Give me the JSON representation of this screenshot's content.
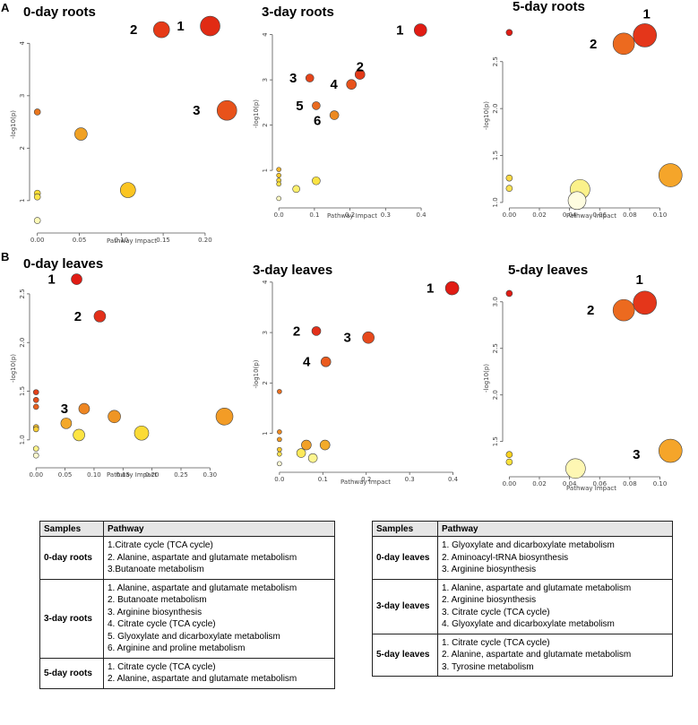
{
  "panel_labels": [
    "A",
    "B"
  ],
  "chart_data": [
    {
      "type": "scatter",
      "title": "0-day roots",
      "xlabel": "Pathway Impact",
      "ylabel": "-log10(p)",
      "xlim": [
        -0.005,
        0.23
      ],
      "ylim": [
        0.45,
        4.45
      ],
      "xticks": [
        0.0,
        0.05,
        0.1,
        0.15,
        0.2
      ],
      "xtick_labels": [
        "0.00",
        "0.05",
        "0.10",
        "0.15",
        "0.20"
      ],
      "yticks": [
        1,
        2,
        3,
        4
      ],
      "ytick_labels": [
        "1",
        "2",
        "3",
        "4"
      ],
      "points": [
        {
          "x": 0.206,
          "y": 4.33,
          "r": 11,
          "color": "#e12b14",
          "label": "1"
        },
        {
          "x": 0.148,
          "y": 4.26,
          "r": 9,
          "color": "#e63a17",
          "label": "2"
        },
        {
          "x": 0.226,
          "y": 2.72,
          "r": 11,
          "color": "#e8521b",
          "label": "3"
        },
        {
          "x": 0.0,
          "y": 2.69,
          "r": 3.5,
          "color": "#e8761e",
          "label": ""
        },
        {
          "x": 0.052,
          "y": 2.27,
          "r": 7,
          "color": "#f0a124",
          "label": ""
        },
        {
          "x": 0.108,
          "y": 1.2,
          "r": 8.5,
          "color": "#fbc522",
          "label": ""
        },
        {
          "x": 0.0,
          "y": 1.14,
          "r": 3.5,
          "color": "#fbdc33",
          "label": ""
        },
        {
          "x": 0.0,
          "y": 1.07,
          "r": 3.5,
          "color": "#fde54a",
          "label": ""
        },
        {
          "x": 0.0,
          "y": 0.62,
          "r": 3.5,
          "color": "#fefbb8",
          "label": ""
        }
      ]
    },
    {
      "type": "scatter",
      "title": "3-day roots",
      "xlabel": "Pathway Impact",
      "ylabel": "-log10(p)",
      "xlim": [
        -0.008,
        0.42
      ],
      "ylim": [
        0.25,
        4.25
      ],
      "xticks": [
        0.0,
        0.1,
        0.2,
        0.3,
        0.4
      ],
      "xtick_labels": [
        "0.0",
        "0.1",
        "0.2",
        "0.3",
        "0.4"
      ],
      "yticks": [
        1,
        2,
        3,
        4
      ],
      "ytick_labels": [
        "1",
        "2",
        "3",
        "4"
      ],
      "points": [
        {
          "x": 0.398,
          "y": 4.1,
          "r": 7,
          "color": "#e11c14",
          "label": "1"
        },
        {
          "x": 0.228,
          "y": 3.12,
          "r": 5.5,
          "color": "#e43a18",
          "label": "2"
        },
        {
          "x": 0.087,
          "y": 3.04,
          "r": 4.5,
          "color": "#e5441a",
          "label": "3"
        },
        {
          "x": 0.204,
          "y": 2.9,
          "r": 5.5,
          "color": "#e8521b",
          "label": "4"
        },
        {
          "x": 0.105,
          "y": 2.43,
          "r": 4.5,
          "color": "#ea6b1f",
          "label": "5"
        },
        {
          "x": 0.156,
          "y": 2.22,
          "r": 5,
          "color": "#ec8a22",
          "label": "6"
        },
        {
          "x": 0.0,
          "y": 1.02,
          "r": 2.5,
          "color": "#f3b52a",
          "label": ""
        },
        {
          "x": 0.0,
          "y": 0.89,
          "r": 2.5,
          "color": "#f7c92d",
          "label": ""
        },
        {
          "x": 0.0,
          "y": 0.78,
          "r": 2.5,
          "color": "#fcd935",
          "label": ""
        },
        {
          "x": 0.0,
          "y": 0.7,
          "r": 2.5,
          "color": "#fde347",
          "label": ""
        },
        {
          "x": 0.105,
          "y": 0.77,
          "r": 4.5,
          "color": "#fbe343",
          "label": ""
        },
        {
          "x": 0.049,
          "y": 0.59,
          "r": 4,
          "color": "#fdf06b",
          "label": ""
        },
        {
          "x": 0.0,
          "y": 0.38,
          "r": 2.5,
          "color": "#fefbc2",
          "label": ""
        }
      ]
    },
    {
      "type": "scatter",
      "title": "5-day roots",
      "xlabel": "Pathway Impact",
      "ylabel": "-log10(p)",
      "xlim": [
        -0.002,
        0.111
      ],
      "ylim": [
        0.98,
        2.87
      ],
      "xticks": [
        0.0,
        0.02,
        0.04,
        0.06,
        0.08,
        0.1
      ],
      "xtick_labels": [
        "0.00",
        "0.02",
        "0.04",
        "0.06",
        "0.08",
        "0.10"
      ],
      "yticks": [
        1.0,
        1.5,
        2.0,
        2.5
      ],
      "ytick_labels": [
        "1.0",
        "1.5",
        "2.0",
        "2.5"
      ],
      "points": [
        {
          "x": 0.0,
          "y": 2.81,
          "r": 3.5,
          "color": "#e01c14",
          "label": ""
        },
        {
          "x": 0.09,
          "y": 2.78,
          "r": 13,
          "color": "#e4361a",
          "label": "1"
        },
        {
          "x": 0.076,
          "y": 2.69,
          "r": 12,
          "color": "#ec6a1f",
          "label": "2"
        },
        {
          "x": 0.107,
          "y": 1.29,
          "r": 13,
          "color": "#f5a52a",
          "label": ""
        },
        {
          "x": 0.0,
          "y": 1.26,
          "r": 3.5,
          "color": "#fbd944",
          "label": ""
        },
        {
          "x": 0.0,
          "y": 1.15,
          "r": 3.5,
          "color": "#fbe153",
          "label": ""
        },
        {
          "x": 0.047,
          "y": 1.14,
          "r": 11,
          "color": "#fbf18a",
          "label": ""
        },
        {
          "x": 0.045,
          "y": 1.02,
          "r": 10,
          "color": "#fefce0",
          "label": ""
        }
      ]
    },
    {
      "type": "scatter",
      "title": "0-day leaves",
      "xlabel": "Pathway Impact",
      "ylabel": "-log10(p)",
      "xlim": [
        -0.005,
        0.335
      ],
      "ylim": [
        0.75,
        2.72
      ],
      "xticks": [
        0.0,
        0.05,
        0.1,
        0.15,
        0.2,
        0.25,
        0.3
      ],
      "xtick_labels": [
        "0.00",
        "0.05",
        "0.10",
        "0.15",
        "0.20",
        "0.25",
        "0.30"
      ],
      "yticks": [
        1.0,
        1.5,
        2.0,
        2.5
      ],
      "ytick_labels": [
        "1.0",
        "1.5",
        "2.0",
        "2.5"
      ],
      "points": [
        {
          "x": 0.07,
          "y": 2.65,
          "r": 6,
          "color": "#e01c14",
          "label": "1"
        },
        {
          "x": 0.11,
          "y": 2.27,
          "r": 6.5,
          "color": "#e3301a",
          "label": "2"
        },
        {
          "x": 0.0,
          "y": 1.49,
          "r": 3,
          "color": "#e4401a",
          "label": ""
        },
        {
          "x": 0.0,
          "y": 1.41,
          "r": 3,
          "color": "#e64f1c",
          "label": ""
        },
        {
          "x": 0.0,
          "y": 1.34,
          "r": 3,
          "color": "#e9601e",
          "label": ""
        },
        {
          "x": 0.083,
          "y": 1.32,
          "r": 6,
          "color": "#ee8622",
          "label": "3"
        },
        {
          "x": 0.135,
          "y": 1.24,
          "r": 7,
          "color": "#ef9524",
          "label": ""
        },
        {
          "x": 0.325,
          "y": 1.24,
          "r": 9.5,
          "color": "#f39c26",
          "label": ""
        },
        {
          "x": 0.052,
          "y": 1.17,
          "r": 6,
          "color": "#f3a82a",
          "label": ""
        },
        {
          "x": 0.0,
          "y": 1.13,
          "r": 3,
          "color": "#f6c02e",
          "label": ""
        },
        {
          "x": 0.0,
          "y": 1.11,
          "r": 3,
          "color": "#fbcf36",
          "label": ""
        },
        {
          "x": 0.182,
          "y": 1.07,
          "r": 8,
          "color": "#fbdb36",
          "label": ""
        },
        {
          "x": 0.074,
          "y": 1.05,
          "r": 6.5,
          "color": "#fde443",
          "label": ""
        },
        {
          "x": 0.0,
          "y": 0.91,
          "r": 3,
          "color": "#fdf38a",
          "label": ""
        },
        {
          "x": 0.0,
          "y": 0.84,
          "r": 3,
          "color": "#fefbd0",
          "label": ""
        }
      ]
    },
    {
      "type": "scatter",
      "title": "3-day leaves",
      "xlabel": "Pathway Impact",
      "ylabel": "-log10(p)",
      "xlim": [
        -0.008,
        0.405
      ],
      "ylim": [
        0.3,
        4.05
      ],
      "xticks": [
        0.0,
        0.1,
        0.2,
        0.3,
        0.4
      ],
      "xtick_labels": [
        "0.0",
        "0.1",
        "0.2",
        "0.3",
        "0.4"
      ],
      "yticks": [
        1,
        2,
        3,
        4
      ],
      "ytick_labels": [
        "1",
        "2",
        "3",
        "4"
      ],
      "points": [
        {
          "x": 0.398,
          "y": 3.88,
          "r": 7.5,
          "color": "#e11c14",
          "label": "1"
        },
        {
          "x": 0.085,
          "y": 3.03,
          "r": 5,
          "color": "#e3301a",
          "label": "2"
        },
        {
          "x": 0.205,
          "y": 2.9,
          "r": 6.5,
          "color": "#e7491c",
          "label": "3"
        },
        {
          "x": 0.107,
          "y": 2.42,
          "r": 5.5,
          "color": "#ea5a1d",
          "label": "4"
        },
        {
          "x": 0.0,
          "y": 1.83,
          "r": 2.5,
          "color": "#ec6f1f",
          "label": ""
        },
        {
          "x": 0.0,
          "y": 1.03,
          "r": 2.5,
          "color": "#ef8a22",
          "label": ""
        },
        {
          "x": 0.0,
          "y": 0.88,
          "r": 2.5,
          "color": "#f19a24",
          "label": ""
        },
        {
          "x": 0.062,
          "y": 0.77,
          "r": 5.5,
          "color": "#f2a127",
          "label": ""
        },
        {
          "x": 0.105,
          "y": 0.77,
          "r": 5.5,
          "color": "#f3ab2a",
          "label": ""
        },
        {
          "x": 0.0,
          "y": 0.68,
          "r": 2.5,
          "color": "#f8c82f",
          "label": ""
        },
        {
          "x": 0.0,
          "y": 0.59,
          "r": 2.5,
          "color": "#fbe04a",
          "label": ""
        },
        {
          "x": 0.05,
          "y": 0.61,
          "r": 5,
          "color": "#fde95a",
          "label": ""
        },
        {
          "x": 0.077,
          "y": 0.51,
          "r": 5,
          "color": "#fdf58f",
          "label": ""
        },
        {
          "x": 0.0,
          "y": 0.4,
          "r": 2.5,
          "color": "#fefbd3",
          "label": ""
        }
      ]
    },
    {
      "type": "scatter",
      "title": "5-day leaves",
      "xlabel": "Pathway Impact",
      "ylabel": "-log10(p)",
      "xlim": [
        -0.002,
        0.111
      ],
      "ylim": [
        1.16,
        3.2
      ],
      "xticks": [
        0.0,
        0.02,
        0.04,
        0.06,
        0.08,
        0.1
      ],
      "xtick_labels": [
        "0.00",
        "0.02",
        "0.04",
        "0.06",
        "0.08",
        "0.10"
      ],
      "yticks": [
        1.5,
        2.0,
        2.5,
        3.0
      ],
      "ytick_labels": [
        "1.5",
        "2.0",
        "2.5",
        "3.0"
      ],
      "points": [
        {
          "x": 0.0,
          "y": 3.09,
          "r": 3.5,
          "color": "#e01c14",
          "label": ""
        },
        {
          "x": 0.09,
          "y": 2.99,
          "r": 13,
          "color": "#e4361a",
          "label": "1"
        },
        {
          "x": 0.076,
          "y": 2.91,
          "r": 12,
          "color": "#ec6a1f",
          "label": "2"
        },
        {
          "x": 0.107,
          "y": 1.4,
          "r": 13,
          "color": "#f5a52a",
          "label": "3"
        },
        {
          "x": 0.0,
          "y": 1.36,
          "r": 3.5,
          "color": "#fbd21f",
          "label": ""
        },
        {
          "x": 0.0,
          "y": 1.28,
          "r": 3.5,
          "color": "#fde33a",
          "label": ""
        },
        {
          "x": 0.044,
          "y": 1.21,
          "r": 11,
          "color": "#fef7b3",
          "label": ""
        }
      ]
    }
  ],
  "tables": [
    {
      "header_samples": "Samples",
      "header_pathway": "Pathway",
      "rows": [
        {
          "sample": "0-day roots",
          "pathways": [
            "1.Citrate cycle (TCA cycle)",
            "2. Alanine, aspartate and glutamate metabolism",
            "3.Butanoate metabolism"
          ]
        },
        {
          "sample": "3-day roots",
          "pathways": [
            "1. Alanine, aspartate and glutamate metabolism",
            "2. Butanoate metabolism",
            "3. Arginine biosynthesis",
            "4. Citrate cycle (TCA cycle)",
            "5. Glyoxylate and dicarboxylate metabolism",
            "6. Arginine and proline metabolism"
          ]
        },
        {
          "sample": "5-day roots",
          "pathways": [
            "1. Citrate cycle (TCA cycle)",
            "2. Alanine, aspartate and glutamate metabolism"
          ]
        }
      ]
    },
    {
      "header_samples": "Samples",
      "header_pathway": "Pathway",
      "rows": [
        {
          "sample": "0-day leaves",
          "pathways": [
            "1. Glyoxylate and dicarboxylate metabolism",
            "2. Aminoacyl-tRNA biosynthesis",
            "3. Arginine biosynthesis"
          ]
        },
        {
          "sample": "3-day leaves",
          "pathways": [
            "1. Alanine, aspartate and glutamate metabolism",
            "2. Arginine biosynthesis",
            "3. Citrate cycle (TCA cycle)",
            "4. Glyoxylate and dicarboxylate metabolism"
          ]
        },
        {
          "sample": "5-day leaves",
          "pathways": [
            "1. Citrate cycle (TCA cycle)",
            "2. Alanine, aspartate and glutamate metabolism",
            "3. Tyrosine metabolism"
          ]
        }
      ]
    }
  ]
}
